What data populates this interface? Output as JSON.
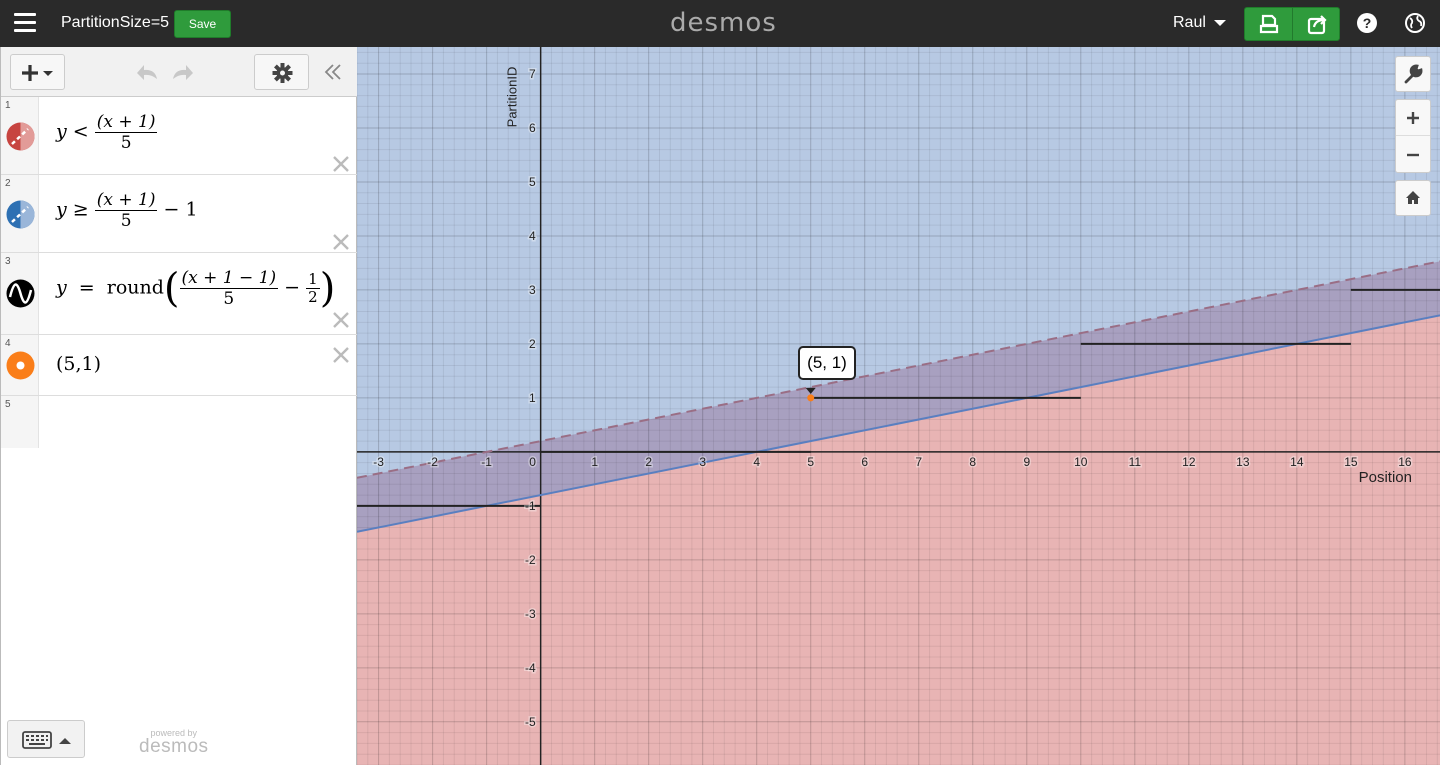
{
  "header": {
    "graph_title": "PartitionSize=5",
    "save_label": "Save",
    "logo": "desmos",
    "user_name": "Raul",
    "icons": [
      "hamburger-icon",
      "print-icon",
      "share-icon",
      "help-icon",
      "globe-icon"
    ]
  },
  "expressions": [
    {
      "index": "1",
      "color": "#c74440",
      "icon": "dashed-region-icon",
      "lhs": "y",
      "rel": "<",
      "numerator": "(x + 1)",
      "denominator": "5"
    },
    {
      "index": "2",
      "color": "#2d70b3",
      "icon": "dashed-region-icon",
      "lhs": "y",
      "rel": "≥",
      "numerator": "(x + 1)",
      "denominator": "5",
      "tail": "− 1"
    },
    {
      "index": "3",
      "color": "#000000",
      "icon": "wave-icon",
      "lhs": "y",
      "rel": "=",
      "func": "round",
      "numerator": "(x + 1 − 1)",
      "denominator": "5",
      "minus": "−",
      "half_num": "1",
      "half_den": "2"
    },
    {
      "index": "4",
      "color": "#fa7e19",
      "icon": "point-icon",
      "text": "(5,1)"
    },
    {
      "index": "5"
    }
  ],
  "powered_by": {
    "line1": "powered by",
    "line2": "desmos"
  },
  "graph": {
    "x_axis_label": "Position",
    "y_axis_label": "PartitionID",
    "x_ticks": [
      -3,
      -2,
      -1,
      0,
      1,
      2,
      3,
      4,
      5,
      6,
      7,
      8,
      9,
      10,
      11,
      12,
      13,
      14,
      15,
      16
    ],
    "y_ticks": [
      -5,
      -4,
      -3,
      -2,
      -1,
      1,
      2,
      3,
      4,
      5,
      6,
      7
    ],
    "xlim": [
      -3.4,
      16.65
    ],
    "ylim": [
      -5.8,
      7.5
    ],
    "point_label": "(5, 1)",
    "colors": {
      "red_region": "#e8b4b4",
      "blue_region": "#b7c9e3",
      "overlap": "#a8a0c0"
    }
  }
}
